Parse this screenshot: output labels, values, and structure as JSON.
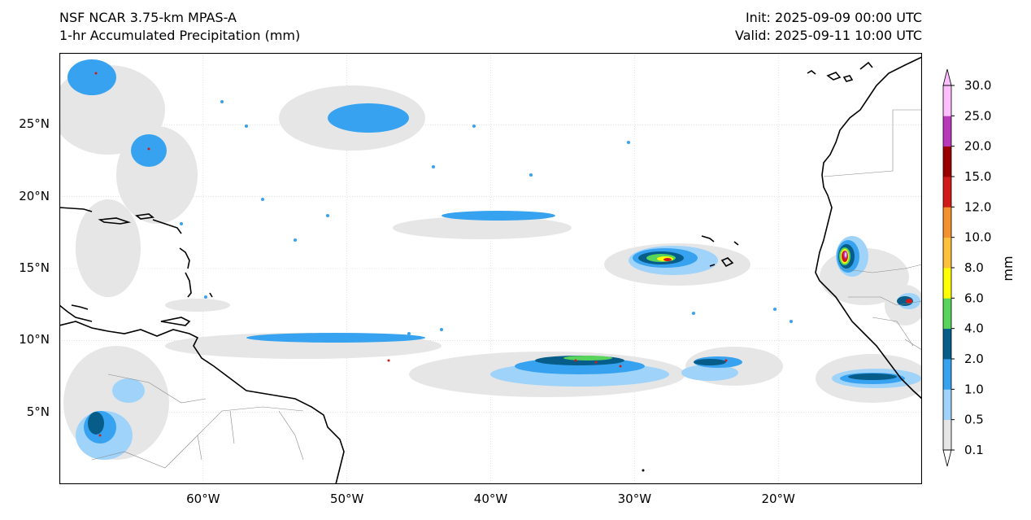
{
  "header": {
    "left": [
      "NSF NCAR 3.75-km MPAS-A",
      "1-hr Accumulated Precipitation (mm)"
    ],
    "right": [
      "Init: 2025-09-09 00:00 UTC",
      "Valid: 2025-09-11 10:00 UTC"
    ]
  },
  "map": {
    "lat_labels": [
      "25°N",
      "20°N",
      "15°N",
      "10°N",
      "5°N"
    ],
    "lon_labels": [
      "60°W",
      "50°W",
      "40°W",
      "30°W",
      "20°W"
    ],
    "lat_values": [
      25,
      20,
      15,
      10,
      5
    ],
    "lon_values": [
      -60,
      -50,
      -40,
      -30,
      -20
    ],
    "extent": {
      "lon": [
        -70,
        -10
      ],
      "lat": [
        0,
        30
      ]
    }
  },
  "colorbar": {
    "unit": "mm",
    "levels": [
      "0.1",
      "0.5",
      "1.0",
      "2.0",
      "4.0",
      "6.0",
      "8.0",
      "10.0",
      "12.0",
      "15.0",
      "20.0",
      "25.0",
      "30.0"
    ],
    "colors": [
      "#e5e5e5",
      "#9fd3fa",
      "#37a3f0",
      "#075d8a",
      "#58d35c",
      "#ffff00",
      "#fcc03a",
      "#f39130",
      "#d11a1a",
      "#9b0000",
      "#b93ab9",
      "#fdbefd"
    ],
    "under_color": "#ffffff",
    "over_color": "#fdbefd"
  }
}
